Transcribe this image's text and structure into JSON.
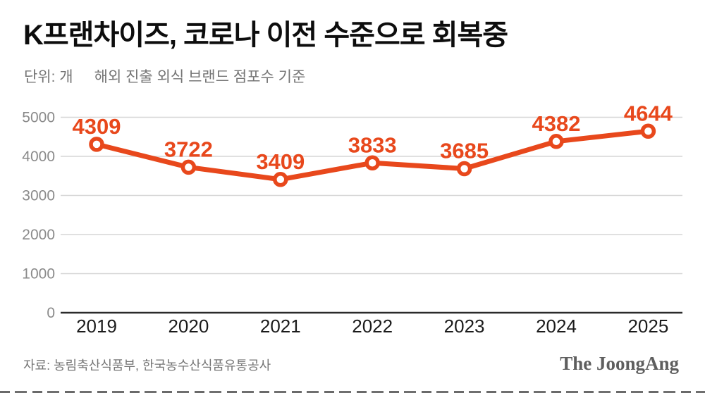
{
  "title": "K프랜차이즈, 코로나 이전 수준으로 회복중",
  "subtitle": {
    "unit": "단위: 개",
    "basis": "해외 진출 외식 브랜드 점포수 기준"
  },
  "footer": {
    "source": "자료: 농림축산식품부, 한국농수산식품유통공사",
    "logo": "The JoongAng"
  },
  "colors": {
    "line": "#E8481C",
    "label": "#E8481C",
    "marker_fill": "#FFFFFF",
    "grid": "#D6D6D6",
    "axis": "#2B2B2B",
    "ytick": "#8A8A8A",
    "xtick": "#1B1B1B",
    "title": "#0D0D0D",
    "subtitle": "#757575"
  },
  "chart_data": {
    "type": "line",
    "categories": [
      "2019",
      "2020",
      "2021",
      "2022",
      "2023",
      "2024",
      "2025"
    ],
    "values": [
      4309,
      3722,
      3409,
      3833,
      3685,
      4382,
      4644
    ],
    "series": [
      {
        "name": "해외 진출 외식 브랜드 점포수",
        "values": [
          4309,
          3722,
          3409,
          3833,
          3685,
          4382,
          4644
        ]
      }
    ],
    "title": "K프랜차이즈, 코로나 이전 수준으로 회복중",
    "xlabel": "",
    "ylabel": "단위: 개",
    "ylim": [
      0,
      5000
    ],
    "yticks": [
      0,
      1000,
      2000,
      3000,
      4000,
      5000
    ],
    "grid": true,
    "legend": false,
    "data_labels": true
  }
}
